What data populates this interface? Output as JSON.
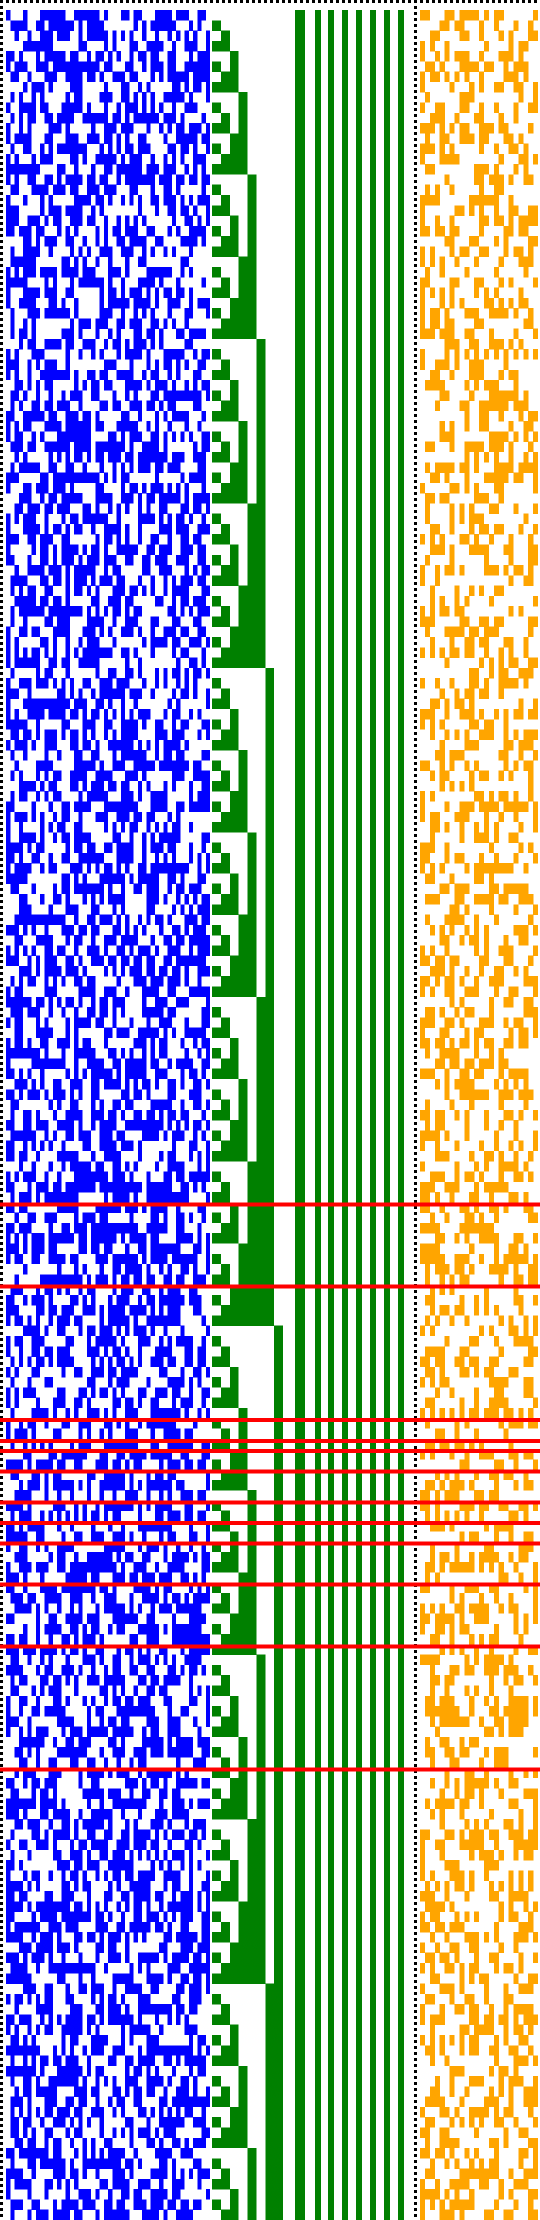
{
  "rows": 215,
  "bitmap": {
    "blue_columns": 48,
    "counter_bits": 9,
    "bar_bits": 8,
    "orange_columns": 24,
    "density": {
      "blue": 0.52,
      "orange": 0.4
    }
  },
  "highlighted_rows": [
    116,
    124,
    137,
    139,
    140,
    142,
    145,
    147,
    149,
    153,
    159,
    171
  ],
  "colors": {
    "blue": "#0000ff",
    "green": "#008000",
    "orange": "#ffa500",
    "red": "#ff0000",
    "separator": "#000000",
    "background": "#ffffff"
  }
}
